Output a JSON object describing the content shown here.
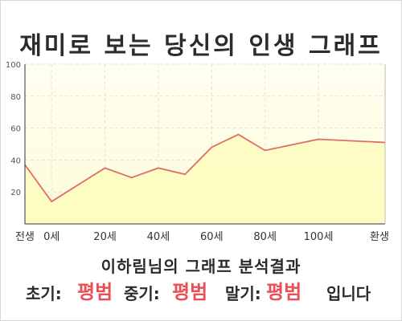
{
  "title": "재미로 보는 당신의 인생 그래프",
  "chart_data": {
    "type": "area",
    "x_tick_labels": [
      "전생",
      "0세",
      "20세",
      "40세",
      "60세",
      "80세",
      "100세",
      "환생"
    ],
    "y_ticks": [
      20,
      40,
      60,
      80,
      100
    ],
    "ylim": [
      0,
      100
    ],
    "grid": true,
    "line_color": "#e06b6b",
    "fill_color": "#fdfcc0",
    "series": [
      {
        "points": [
          {
            "x": "전생",
            "y": 37
          },
          {
            "x": "0세",
            "y": 14
          },
          {
            "x": "20세",
            "y": 35
          },
          {
            "x": "30세",
            "y": 29
          },
          {
            "x": "40세",
            "y": 35
          },
          {
            "x": "50세",
            "y": 31
          },
          {
            "x": "60세",
            "y": 48
          },
          {
            "x": "70세",
            "y": 56
          },
          {
            "x": "80세",
            "y": 46
          },
          {
            "x": "100세",
            "y": 53
          },
          {
            "x": "환생",
            "y": 51
          }
        ]
      }
    ]
  },
  "summary": {
    "heading": "이하림님의 그래프 분석결과",
    "early_label": "초기:",
    "early_value": "평범",
    "middle_label": "중기:",
    "middle_value": "평범",
    "late_label": "말기:",
    "late_value": "평범",
    "ending": "입니다"
  }
}
